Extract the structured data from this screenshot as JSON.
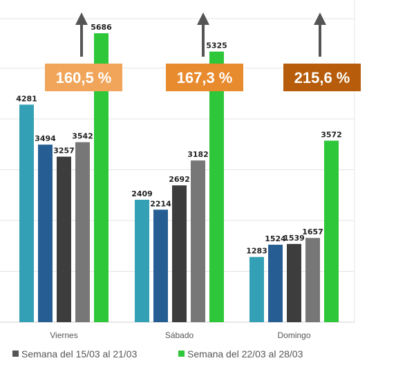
{
  "chart_data": {
    "type": "bar",
    "title": "",
    "xlabel": "",
    "ylabel": "",
    "categories": [
      "Viernes",
      "Sábado",
      "Domingo"
    ],
    "ylim": [
      0,
      6500
    ],
    "grid": true,
    "series": [
      {
        "values": [
          4281,
          2409,
          1283
        ],
        "color": "#34a0b5"
      },
      {
        "values": [
          3494,
          2214,
          1524
        ],
        "color": "#265e94"
      },
      {
        "values": [
          3257,
          2692,
          1539
        ],
        "color": "#3d3d3d"
      },
      {
        "name": "Semana del 15/03 al 21/03",
        "values": [
          3542,
          3182,
          1657
        ],
        "color": "#777777"
      },
      {
        "name": "Semana del 22/03 al 28/03",
        "values": [
          5686,
          5325,
          3572
        ],
        "color": "#2ec73a"
      }
    ],
    "annotations": [
      {
        "category": "Viernes",
        "text": "160,5 %",
        "color": "#f0a55a"
      },
      {
        "category": "Sábado",
        "text": "167,3 %",
        "color": "#e88a2e"
      },
      {
        "category": "Domingo",
        "text": "215,6 %",
        "color": "#b65c0a"
      }
    ],
    "legend": {
      "placement": "bottom",
      "entries": [
        {
          "label": "Semana del 15/03 al 21/03",
          "color": "#555555"
        },
        {
          "label": "Semana del 22/03 al 28/03",
          "color": "#2ec73a"
        }
      ]
    },
    "arrow_color": "#555555"
  }
}
